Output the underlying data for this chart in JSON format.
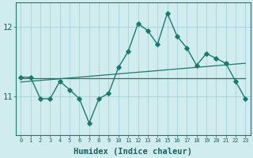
{
  "xlabel": "Humidex (Indice chaleur)",
  "x_values": [
    0,
    1,
    2,
    3,
    4,
    5,
    6,
    7,
    8,
    9,
    10,
    11,
    12,
    13,
    14,
    15,
    16,
    17,
    18,
    19,
    20,
    21,
    22,
    23
  ],
  "main_line": [
    11.28,
    11.28,
    10.97,
    10.97,
    11.22,
    11.1,
    10.97,
    10.62,
    10.97,
    11.05,
    11.42,
    11.65,
    12.05,
    11.95,
    11.75,
    12.2,
    11.87,
    11.7,
    11.45,
    11.62,
    11.55,
    11.48,
    11.22,
    10.97
  ],
  "flat_line_x": [
    0,
    23
  ],
  "flat_line_y": [
    11.27,
    11.27
  ],
  "trend_line_x": [
    0,
    23
  ],
  "trend_line_y": [
    11.21,
    11.48
  ],
  "line_color": "#1a7a6e",
  "background_color": "#d0ecee",
  "grid_color": "#9ecdd4",
  "tick_label_color": "#1a6060",
  "ylim": [
    10.45,
    12.35
  ],
  "yticks": [
    11,
    12
  ],
  "xlim": [
    -0.5,
    23.5
  ]
}
